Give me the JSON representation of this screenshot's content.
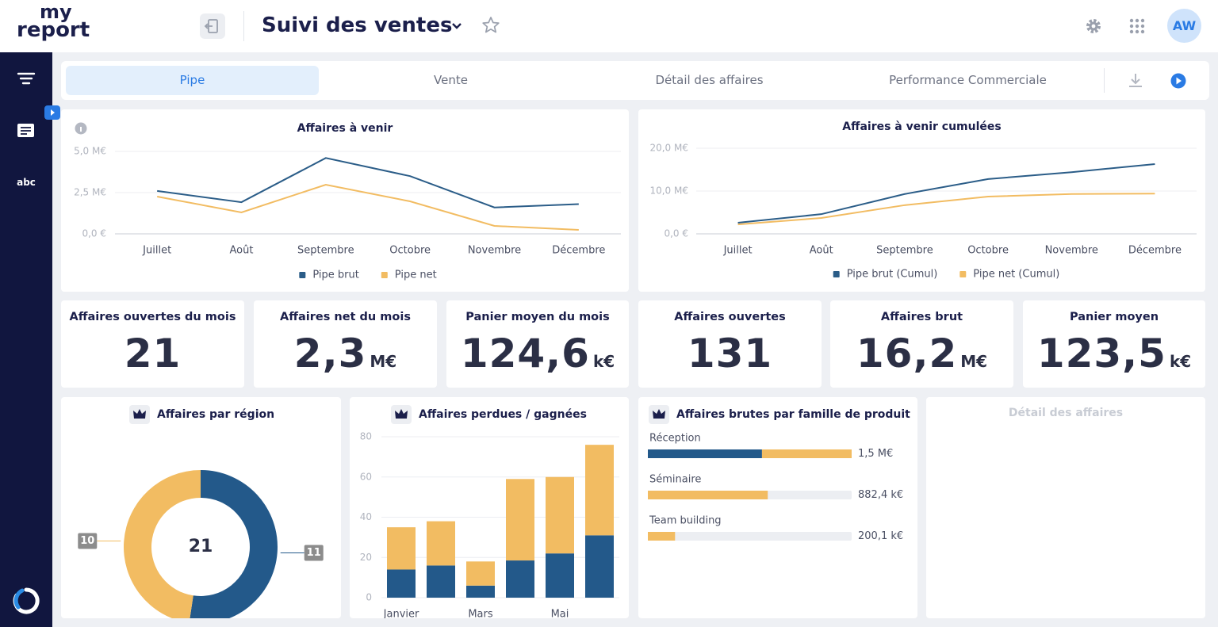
{
  "header": {
    "logo_top": "my",
    "logo_bottom": "report",
    "title": "Suivi des ventes",
    "avatar": "AW"
  },
  "sidebar": {
    "label": "abc"
  },
  "tabs": [
    "Pipe",
    "Vente",
    "Détail des affaires",
    "Performance Commerciale"
  ],
  "kpis": [
    {
      "title": "Affaires ouvertes du mois",
      "value": "21"
    },
    {
      "title": "Affaires net du mois",
      "value": "2,3",
      "unit": "M€"
    },
    {
      "title": "Panier moyen du mois",
      "value": "124,6",
      "unit": "k€"
    },
    {
      "title": "Affaires ouvertes",
      "value": "131"
    },
    {
      "title": "Affaires brut",
      "value": "16,2",
      "unit": "M€"
    },
    {
      "title": "Panier moyen",
      "value": "123,5",
      "unit": "k€"
    }
  ],
  "chart_data": [
    {
      "type": "line",
      "title": "Affaires à venir",
      "categories": [
        "Juillet",
        "Août",
        "Septembre",
        "Octobre",
        "Novembre",
        "Décembre"
      ],
      "series": [
        {
          "name": "Pipe brut",
          "color": "#2b5d88",
          "values": [
            2.6,
            1.92,
            4.6,
            3.5,
            1.6,
            1.8
          ]
        },
        {
          "name": "Pipe net",
          "color": "#f2bc62",
          "values": [
            2.26,
            1.3,
            2.98,
            1.97,
            0.48,
            0.24
          ]
        }
      ],
      "ylim": [
        0,
        5
      ],
      "yticks": [
        {
          "value": 0,
          "label": "0,0 €"
        },
        {
          "value": 2.5,
          "label": "2,5 M€"
        },
        {
          "value": 5,
          "label": "5,0 M€"
        }
      ],
      "grid": true
    },
    {
      "type": "line",
      "title": "Affaires à venir cumulées",
      "categories": [
        "Juillet",
        "Août",
        "Septembre",
        "Octobre",
        "Novembre",
        "Décembre"
      ],
      "series": [
        {
          "name": "Pipe brut (Cumul)",
          "color": "#2b5d88",
          "values": [
            2.6,
            4.6,
            9.3,
            12.8,
            14.4,
            16.3
          ]
        },
        {
          "name": "Pipe net (Cumul)",
          "color": "#f2bc62",
          "values": [
            2.2,
            3.7,
            6.7,
            8.7,
            9.3,
            9.4
          ]
        }
      ],
      "ylim": [
        0,
        20
      ],
      "yticks": [
        {
          "value": 0,
          "label": "0,0 €"
        },
        {
          "value": 10,
          "label": "10,0 M€"
        },
        {
          "value": 20,
          "label": "20,0 M€"
        }
      ],
      "grid": true
    },
    {
      "type": "donut",
      "title": "Affaires par région",
      "center_label": "21",
      "values": [
        11,
        10
      ],
      "colors": [
        "#23598a",
        "#f2bc62"
      ]
    },
    {
      "type": "bar",
      "stacked": true,
      "title": "Affaires perdues / gagnées",
      "categories": [
        "Janvier",
        null,
        "Mars",
        null,
        "Mai",
        null
      ],
      "series": [
        {
          "color": "#23598a",
          "values": [
            14,
            16,
            6,
            18.5,
            22,
            31
          ]
        },
        {
          "color": "#f2bc62",
          "values": [
            21,
            22,
            12,
            40.5,
            38,
            45
          ]
        }
      ],
      "ylim": [
        0,
        80
      ],
      "yticks": [
        0,
        20,
        40,
        60,
        80
      ],
      "grid": true
    },
    {
      "type": "bar",
      "horizontal": true,
      "title": "Affaires brutes par famille de produit",
      "categories": [
        "Réception",
        "Séminaire",
        "Team building"
      ],
      "series": [
        {
          "color": "#23598a",
          "values": [
            840,
            0,
            0
          ]
        },
        {
          "color": "#f2bc62",
          "values": [
            660,
            882.4,
            200.1
          ]
        }
      ],
      "value_labels": [
        "1,5 M€",
        "882,4 k€",
        "200,1 k€"
      ],
      "xlim": [
        0,
        1500
      ]
    }
  ],
  "empty_card": {
    "title": "Détail des affaires"
  }
}
